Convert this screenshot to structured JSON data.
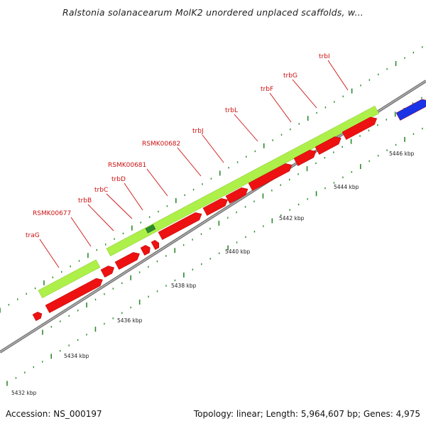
{
  "title": "Ralstonia solanacearum MolK2 unordered unplaced scaffolds, w...",
  "footer": {
    "accession": "Accession: NS_000197",
    "summary": "Topology: linear; Length: 5,964,607 bp; Genes: 4,975"
  },
  "colors": {
    "gene_red": "#ee1111",
    "feature_green": "#aef04a",
    "backbone": "#777777",
    "tick": "#2a8a2a",
    "label_line": "#cc1111",
    "blue_feature": "#1a33e6"
  },
  "scale": {
    "unit": "kbp",
    "labels": [
      "5432 kbp",
      "5434 kbp",
      "5436 kbp",
      "5438 kbp",
      "5440 kbp",
      "5442 kbp",
      "5444 kbp",
      "5446 kbp"
    ]
  },
  "gene_labels": [
    "traG",
    "RSMK00677",
    "trbB",
    "trbC",
    "trbD",
    "RSMK00681",
    "RSMK00682",
    "trbJ",
    "trbL",
    "trbF",
    "trbG",
    "trbI"
  ]
}
